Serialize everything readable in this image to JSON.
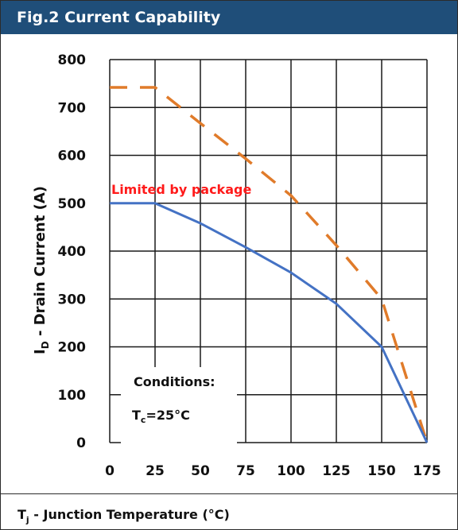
{
  "figure_title": "Fig.2 Current Capability",
  "chart_data": {
    "type": "line",
    "xlabel": "T_j - Junction Temperature (°C)",
    "xlabel_parts": {
      "symbol": "T",
      "sub": "j",
      "rest": " - Junction Temperature (°C)"
    },
    "ylabel_parts": {
      "symbol": "I",
      "sub": "D",
      "rest": " - Drain Current (A)"
    },
    "xlim": [
      0,
      175
    ],
    "ylim": [
      0,
      800
    ],
    "xticks": [
      0,
      25,
      50,
      75,
      100,
      125,
      150,
      175
    ],
    "yticks": [
      0,
      100,
      200,
      300,
      400,
      500,
      600,
      700,
      800
    ],
    "grid": true,
    "series": [
      {
        "style": "dashed",
        "color": "#e07b2a",
        "x": [
          0,
          25,
          50,
          75,
          100,
          125,
          150,
          175
        ],
        "y": [
          742,
          742,
          667,
          593,
          516,
          412,
          300,
          0
        ]
      },
      {
        "style": "solid",
        "color": "#4472c4",
        "x": [
          0,
          25,
          50,
          75,
          100,
          125,
          150,
          175
        ],
        "y": [
          500,
          500,
          458,
          408,
          355,
          290,
          200,
          0
        ]
      }
    ],
    "annotations": {
      "limit_text": "Limited by package",
      "limit_color": "#ff1a1a",
      "conditions_title": "Conditions:",
      "conditions_parts": {
        "symbol": "T",
        "sub": "c",
        "rest": "=25°C"
      }
    }
  }
}
